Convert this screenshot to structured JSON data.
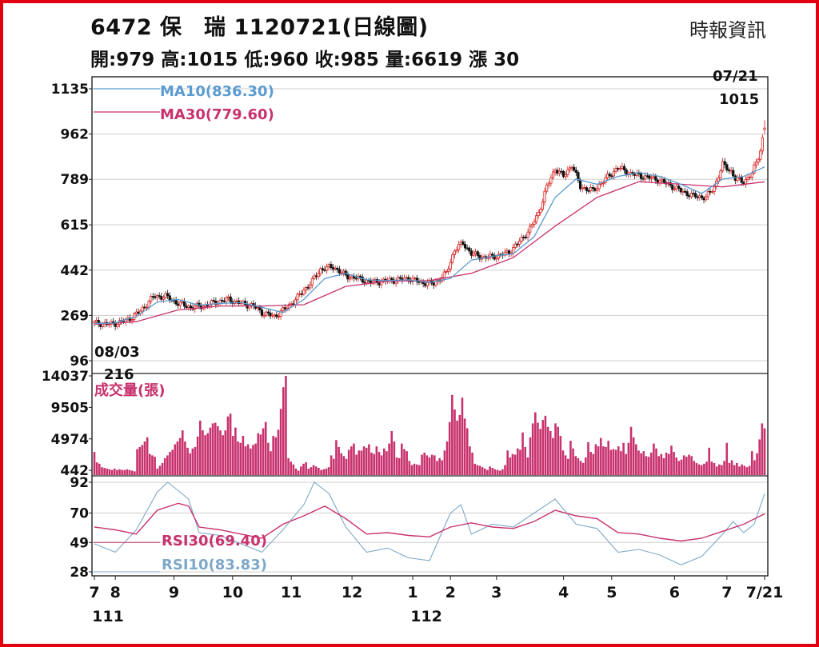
{
  "header": {
    "title": "6472  保　瑞 1120721(日線圖)",
    "source": "時報資訊",
    "ohlc": "開:979 高:1015 低:960 收:985 量:6619 漲 30"
  },
  "colors": {
    "frame": "#e1000f",
    "up": "#d62020",
    "down": "#111111",
    "ma10": "#5b9bd0",
    "ma30": "#c8326e",
    "volume": "#c8326e",
    "rsi10": "#7ea8c8",
    "rsi30": "#c8326e"
  },
  "chart_data": [
    {
      "type": "candlestick",
      "ylim": [
        96,
        1135
      ],
      "yticks": [
        1135,
        962,
        789,
        615,
        442,
        269,
        96
      ],
      "ytick_labels": [
        "1135",
        "962",
        "789",
        "615",
        "442",
        "269",
        "96"
      ],
      "grid": true,
      "legend": [
        {
          "name": "MA10(836.30)",
          "color": "#5b9bd0"
        },
        {
          "name": "MA30(779.60)",
          "color": "#c8326e"
        }
      ],
      "annotations": [
        {
          "text": "07/21",
          "position": "top-right"
        },
        {
          "text": "1015",
          "position": "top-right"
        },
        {
          "text": "08/03",
          "position": "bottom-left"
        },
        {
          "text": "216",
          "position": "bottom-left"
        }
      ],
      "close_path": [
        [
          0,
          240
        ],
        [
          8,
          235
        ],
        [
          15,
          248
        ],
        [
          22,
          285
        ],
        [
          28,
          340
        ],
        [
          34,
          342
        ],
        [
          40,
          315
        ],
        [
          46,
          300
        ],
        [
          52,
          305
        ],
        [
          58,
          320
        ],
        [
          64,
          330
        ],
        [
          70,
          315
        ],
        [
          76,
          305
        ],
        [
          80,
          280
        ],
        [
          86,
          265
        ],
        [
          92,
          300
        ],
        [
          96,
          330
        ],
        [
          100,
          365
        ],
        [
          104,
          400
        ],
        [
          108,
          445
        ],
        [
          114,
          455
        ],
        [
          120,
          420
        ],
        [
          126,
          410
        ],
        [
          132,
          395
        ],
        [
          138,
          400
        ],
        [
          144,
          405
        ],
        [
          150,
          410
        ],
        [
          156,
          395
        ],
        [
          162,
          390
        ],
        [
          168,
          430
        ],
        [
          172,
          520
        ],
        [
          176,
          545
        ],
        [
          180,
          505
        ],
        [
          186,
          490
        ],
        [
          192,
          495
        ],
        [
          198,
          510
        ],
        [
          204,
          560
        ],
        [
          208,
          600
        ],
        [
          212,
          660
        ],
        [
          216,
          760
        ],
        [
          220,
          830
        ],
        [
          224,
          800
        ],
        [
          228,
          845
        ],
        [
          232,
          760
        ],
        [
          238,
          745
        ],
        [
          244,
          790
        ],
        [
          250,
          835
        ],
        [
          256,
          810
        ],
        [
          262,
          800
        ],
        [
          268,
          790
        ],
        [
          274,
          770
        ],
        [
          280,
          745
        ],
        [
          286,
          725
        ],
        [
          292,
          720
        ],
        [
          296,
          760
        ],
        [
          300,
          845
        ],
        [
          304,
          820
        ],
        [
          306,
          790
        ],
        [
          310,
          780
        ],
        [
          314,
          810
        ],
        [
          318,
          900
        ],
        [
          320,
          985
        ]
      ],
      "ma10_path": [
        [
          0,
          238
        ],
        [
          10,
          240
        ],
        [
          20,
          265
        ],
        [
          30,
          320
        ],
        [
          40,
          330
        ],
        [
          50,
          308
        ],
        [
          60,
          315
        ],
        [
          70,
          318
        ],
        [
          80,
          300
        ],
        [
          90,
          280
        ],
        [
          100,
          330
        ],
        [
          110,
          410
        ],
        [
          120,
          430
        ],
        [
          130,
          405
        ],
        [
          140,
          402
        ],
        [
          150,
          405
        ],
        [
          160,
          395
        ],
        [
          170,
          410
        ],
        [
          180,
          480
        ],
        [
          190,
          495
        ],
        [
          200,
          505
        ],
        [
          210,
          570
        ],
        [
          220,
          720
        ],
        [
          230,
          790
        ],
        [
          240,
          770
        ],
        [
          250,
          800
        ],
        [
          260,
          815
        ],
        [
          270,
          800
        ],
        [
          280,
          770
        ],
        [
          290,
          735
        ],
        [
          300,
          790
        ],
        [
          310,
          800
        ],
        [
          320,
          836.3
        ]
      ],
      "ma30_path": [
        [
          0,
          235
        ],
        [
          20,
          245
        ],
        [
          40,
          290
        ],
        [
          60,
          305
        ],
        [
          80,
          305
        ],
        [
          100,
          310
        ],
        [
          120,
          380
        ],
        [
          140,
          400
        ],
        [
          160,
          402
        ],
        [
          180,
          430
        ],
        [
          200,
          490
        ],
        [
          220,
          610
        ],
        [
          240,
          720
        ],
        [
          260,
          780
        ],
        [
          280,
          770
        ],
        [
          300,
          760
        ],
        [
          320,
          779.6
        ]
      ]
    },
    {
      "type": "bar",
      "title": "成交量(張)",
      "ylim": [
        0,
        14037
      ],
      "yticks": [
        14037,
        9505,
        4974,
        442
      ],
      "ytick_labels": [
        "14037",
        "9505",
        "4974",
        "442"
      ],
      "values": [
        3100,
        1600,
        1400,
        900,
        800,
        700,
        600,
        500,
        700,
        500,
        600,
        500,
        500,
        600,
        500,
        400,
        300,
        3500,
        3800,
        4100,
        4600,
        5200,
        2800,
        2600,
        2400,
        700,
        1100,
        1500,
        2200,
        2600,
        3100,
        3400,
        4200,
        4600,
        5100,
        6200,
        4600,
        3700,
        2900,
        3600,
        3800,
        5300,
        7600,
        6200,
        5500,
        5800,
        6600,
        7200,
        7300,
        6800,
        6200,
        5500,
        6200,
        8200,
        8600,
        5400,
        6600,
        4600,
        4400,
        5400,
        3900,
        4200,
        3600,
        4100,
        4300,
        5800,
        5600,
        6500,
        7400,
        4400,
        3200,
        5400,
        5200,
        6300,
        9300,
        12400,
        14037,
        2200,
        1700,
        1300,
        700,
        400,
        1000,
        1400,
        1600,
        700,
        900,
        1200,
        1000,
        800,
        500,
        600,
        700,
        900,
        2600,
        2100,
        4800,
        3800,
        2900,
        2500,
        2100,
        3400,
        3900,
        4300,
        2700,
        3300,
        3300,
        3900,
        3700,
        4200,
        3000,
        2800,
        3900,
        3100,
        2600,
        3600,
        3200,
        4300,
        6100,
        4600,
        2300,
        2200,
        4300,
        3500,
        3200,
        1800,
        1200,
        1400,
        1300,
        1200,
        2700,
        3000,
        2600,
        2300,
        2700,
        2600,
        1800,
        2200,
        1900,
        3300,
        4600,
        7400,
        11300,
        9200,
        7600,
        8400,
        10900,
        7900,
        6500,
        3900,
        3000,
        1400,
        1200,
        1100,
        900,
        700,
        500,
        1000,
        800,
        600,
        500,
        400,
        600,
        1200,
        3300,
        2300,
        2800,
        2700,
        3600,
        3400,
        5900,
        3800,
        2300,
        5200,
        7200,
        8800,
        7300,
        6400,
        7700,
        8300,
        6700,
        6100,
        5100,
        7200,
        6700,
        5400,
        3300,
        2600,
        2100,
        4700,
        3600,
        2500,
        2200,
        1800,
        1500,
        2300,
        4500,
        3100,
        2800,
        4200,
        3900,
        5100,
        3900,
        3800,
        4700,
        3400,
        3500,
        3400,
        3900,
        3200,
        4400,
        2800,
        4400,
        6700,
        5200,
        4200,
        3300,
        2900,
        3200,
        2500,
        2400,
        3000,
        4300,
        3600,
        2500,
        2800,
        2200,
        3000,
        2800,
        4000,
        3100,
        2300,
        1800,
        2000,
        2600,
        2400,
        2700,
        2500,
        1800,
        1500,
        1300,
        1200,
        1400,
        1700,
        3700,
        1700,
        1500,
        1000,
        1300,
        1200,
        1800,
        4400,
        1500,
        1900,
        1200,
        1500,
        1000,
        1300,
        1100,
        900,
        1100,
        3200,
        1900,
        2900,
        4900,
        7200,
        6500
      ]
    },
    {
      "type": "line",
      "ylim": [
        28,
        92
      ],
      "yticks": [
        92,
        70,
        49,
        28
      ],
      "ytick_labels": [
        "92",
        "70",
        "49",
        "28"
      ],
      "legend": [
        {
          "name": "RSI30(69.40)",
          "color": "#c8326e"
        },
        {
          "name": "RSI10(83.83)",
          "color": "#7ea8c8"
        }
      ],
      "rsi30_path": [
        [
          0,
          60
        ],
        [
          10,
          58
        ],
        [
          20,
          55
        ],
        [
          30,
          72
        ],
        [
          40,
          77
        ],
        [
          45,
          75
        ],
        [
          50,
          60
        ],
        [
          60,
          58
        ],
        [
          70,
          55
        ],
        [
          80,
          52
        ],
        [
          90,
          62
        ],
        [
          100,
          68
        ],
        [
          110,
          75
        ],
        [
          120,
          66
        ],
        [
          130,
          55
        ],
        [
          140,
          56
        ],
        [
          150,
          54
        ],
        [
          160,
          53
        ],
        [
          170,
          60
        ],
        [
          180,
          63
        ],
        [
          190,
          60
        ],
        [
          200,
          59
        ],
        [
          210,
          64
        ],
        [
          220,
          72
        ],
        [
          230,
          68
        ],
        [
          240,
          66
        ],
        [
          250,
          56
        ],
        [
          260,
          55
        ],
        [
          270,
          52
        ],
        [
          280,
          50
        ],
        [
          290,
          52
        ],
        [
          300,
          57
        ],
        [
          310,
          62
        ],
        [
          320,
          69.4
        ]
      ],
      "rsi10_path": [
        [
          0,
          48
        ],
        [
          10,
          42
        ],
        [
          20,
          58
        ],
        [
          30,
          85
        ],
        [
          35,
          92
        ],
        [
          40,
          86
        ],
        [
          45,
          80
        ],
        [
          50,
          56
        ],
        [
          60,
          54
        ],
        [
          70,
          48
        ],
        [
          80,
          42
        ],
        [
          90,
          58
        ],
        [
          100,
          76
        ],
        [
          105,
          92
        ],
        [
          112,
          84
        ],
        [
          120,
          60
        ],
        [
          130,
          42
        ],
        [
          140,
          45
        ],
        [
          150,
          38
        ],
        [
          160,
          36
        ],
        [
          170,
          70
        ],
        [
          175,
          76
        ],
        [
          180,
          55
        ],
        [
          190,
          62
        ],
        [
          200,
          60
        ],
        [
          210,
          70
        ],
        [
          220,
          80
        ],
        [
          230,
          62
        ],
        [
          240,
          59
        ],
        [
          250,
          42
        ],
        [
          260,
          44
        ],
        [
          270,
          40
        ],
        [
          280,
          33
        ],
        [
          290,
          39
        ],
        [
          300,
          55
        ],
        [
          305,
          64
        ],
        [
          310,
          56
        ],
        [
          315,
          62
        ],
        [
          320,
          83.83
        ]
      ]
    }
  ],
  "x_axis": {
    "month_labels": [
      "7",
      "8",
      "9",
      "10",
      "11",
      "12",
      "1",
      "2",
      "3",
      "4",
      "5",
      "6",
      "7",
      "7/21"
    ],
    "month_pos": [
      0,
      10,
      38,
      66,
      94,
      123,
      152,
      170,
      192,
      224,
      247,
      277,
      302,
      320
    ],
    "year_labels": [
      "111",
      "112"
    ],
    "year_pos": [
      0,
      152
    ]
  }
}
